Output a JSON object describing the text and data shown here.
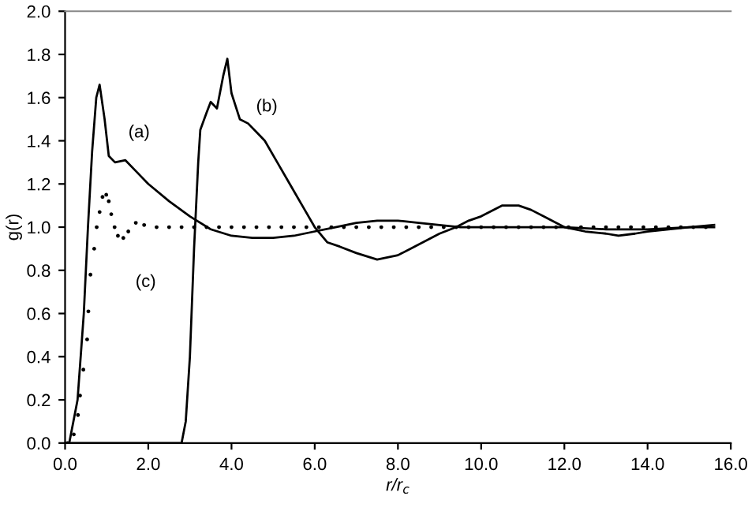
{
  "chart_data": {
    "type": "line",
    "xlabel": "r/r$_{c}$",
    "ylabel": "g(r)",
    "series": [
      {
        "name": "(a)",
        "color": "#000000",
        "x": [
          0.0,
          0.1,
          0.3,
          0.45,
          0.55,
          0.65,
          0.75,
          0.83,
          0.95,
          1.05,
          1.2,
          1.45,
          1.7,
          2.0,
          2.5,
          3.0,
          3.5,
          4.0,
          4.5,
          5.0,
          5.5,
          6.0,
          6.5,
          7.0,
          7.5,
          8.0,
          8.5,
          9.0,
          9.5,
          10.5,
          12.0,
          13.0,
          14.0,
          15.0,
          15.6
        ],
        "values": [
          0.0,
          0.0,
          0.2,
          0.6,
          1.0,
          1.35,
          1.6,
          1.66,
          1.5,
          1.33,
          1.3,
          1.31,
          1.26,
          1.2,
          1.12,
          1.05,
          0.99,
          0.96,
          0.95,
          0.95,
          0.96,
          0.98,
          1.0,
          1.02,
          1.03,
          1.03,
          1.02,
          1.01,
          1.0,
          1.0,
          1.0,
          0.99,
          0.99,
          1.0,
          1.0
        ]
      },
      {
        "name": "(b)",
        "color": "#000000",
        "x": [
          0.0,
          2.8,
          2.9,
          3.0,
          3.1,
          3.2,
          3.25,
          3.4,
          3.5,
          3.65,
          3.8,
          3.9,
          4.0,
          4.2,
          4.4,
          4.6,
          4.8,
          5.1,
          5.4,
          5.7,
          6.0,
          6.3,
          6.6,
          7.0,
          7.5,
          8.0,
          8.3,
          8.7,
          9.0,
          9.4,
          9.7,
          10.0,
          10.5,
          10.9,
          11.2,
          11.5,
          12.0,
          12.5,
          13.0,
          13.3,
          13.7,
          14.0,
          14.5,
          15.0,
          15.6
        ],
        "values": [
          0.0,
          0.0,
          0.1,
          0.4,
          0.9,
          1.3,
          1.45,
          1.53,
          1.58,
          1.55,
          1.7,
          1.78,
          1.62,
          1.5,
          1.48,
          1.44,
          1.4,
          1.3,
          1.2,
          1.1,
          1.0,
          0.93,
          0.91,
          0.88,
          0.85,
          0.87,
          0.9,
          0.94,
          0.97,
          1.0,
          1.03,
          1.05,
          1.1,
          1.1,
          1.08,
          1.05,
          1.0,
          0.98,
          0.97,
          0.96,
          0.97,
          0.98,
          0.99,
          1.0,
          1.01
        ]
      },
      {
        "name": "(c)",
        "color": "#000000",
        "type": "scatter",
        "x": [
          0.06,
          0.21,
          0.31,
          0.36,
          0.44,
          0.53,
          0.56,
          0.61,
          0.7,
          0.76,
          0.83,
          0.9,
          0.99,
          1.05,
          1.11,
          1.19,
          1.27,
          1.4,
          1.52,
          1.7,
          1.9,
          2.2,
          2.5,
          2.8,
          3.1,
          3.4,
          3.7,
          4.0,
          4.3,
          4.6,
          4.9,
          5.2,
          5.5,
          5.8,
          6.1,
          6.4,
          6.7,
          7.0,
          7.3,
          7.6,
          7.9,
          8.2,
          8.5,
          8.8,
          9.1,
          9.4,
          9.7,
          10.0,
          10.3,
          10.6,
          10.9,
          11.2,
          11.5,
          11.8,
          12.1,
          12.4,
          12.7,
          13.0,
          13.3,
          13.6,
          13.9,
          14.2,
          14.5,
          14.8,
          15.1,
          15.4
        ],
        "values": [
          0.0,
          0.04,
          0.13,
          0.22,
          0.34,
          0.48,
          0.61,
          0.78,
          0.9,
          1.0,
          1.07,
          1.14,
          1.15,
          1.12,
          1.06,
          1.0,
          0.96,
          0.95,
          0.98,
          1.02,
          1.01,
          1.0,
          1.0,
          1.0,
          1.0,
          1.0,
          1.0,
          1.0,
          1.0,
          1.0,
          1.0,
          1.0,
          1.0,
          1.0,
          1.0,
          1.0,
          1.0,
          1.0,
          1.0,
          1.0,
          1.0,
          1.0,
          1.0,
          1.0,
          1.0,
          1.0,
          1.0,
          1.0,
          1.0,
          1.0,
          1.0,
          1.0,
          1.0,
          1.0,
          1.0,
          1.0,
          1.0,
          1.0,
          1.0,
          1.0,
          1.0,
          1.0,
          1.0,
          1.0,
          1.0,
          1.0
        ]
      }
    ],
    "xlim": [
      0,
      16
    ],
    "ylim": [
      0,
      2
    ],
    "xticks": [
      {
        "value": 0,
        "label": "0.0"
      },
      {
        "value": 2,
        "label": "2.0"
      },
      {
        "value": 4,
        "label": "4.0"
      },
      {
        "value": 6,
        "label": "6.0"
      },
      {
        "value": 8,
        "label": "8.0"
      },
      {
        "value": 10,
        "label": "10.0"
      },
      {
        "value": 12,
        "label": "12.0"
      },
      {
        "value": 14,
        "label": "14.0"
      },
      {
        "value": 16,
        "label": "16.0"
      }
    ],
    "yticks": [
      {
        "value": 0,
        "label": "0.0"
      },
      {
        "value": 0.2,
        "label": "0.2"
      },
      {
        "value": 0.4,
        "label": "0.4"
      },
      {
        "value": 0.6,
        "label": "0.6"
      },
      {
        "value": 0.8,
        "label": "0.8"
      },
      {
        "value": 1.0,
        "label": "1.0"
      },
      {
        "value": 1.2,
        "label": "1.2"
      },
      {
        "value": 1.4,
        "label": "1.4"
      },
      {
        "value": 1.6,
        "label": "1.6"
      },
      {
        "value": 1.8,
        "label": "1.8"
      },
      {
        "value": 2.0,
        "label": "2.0"
      }
    ],
    "grid": false,
    "legend": false
  }
}
